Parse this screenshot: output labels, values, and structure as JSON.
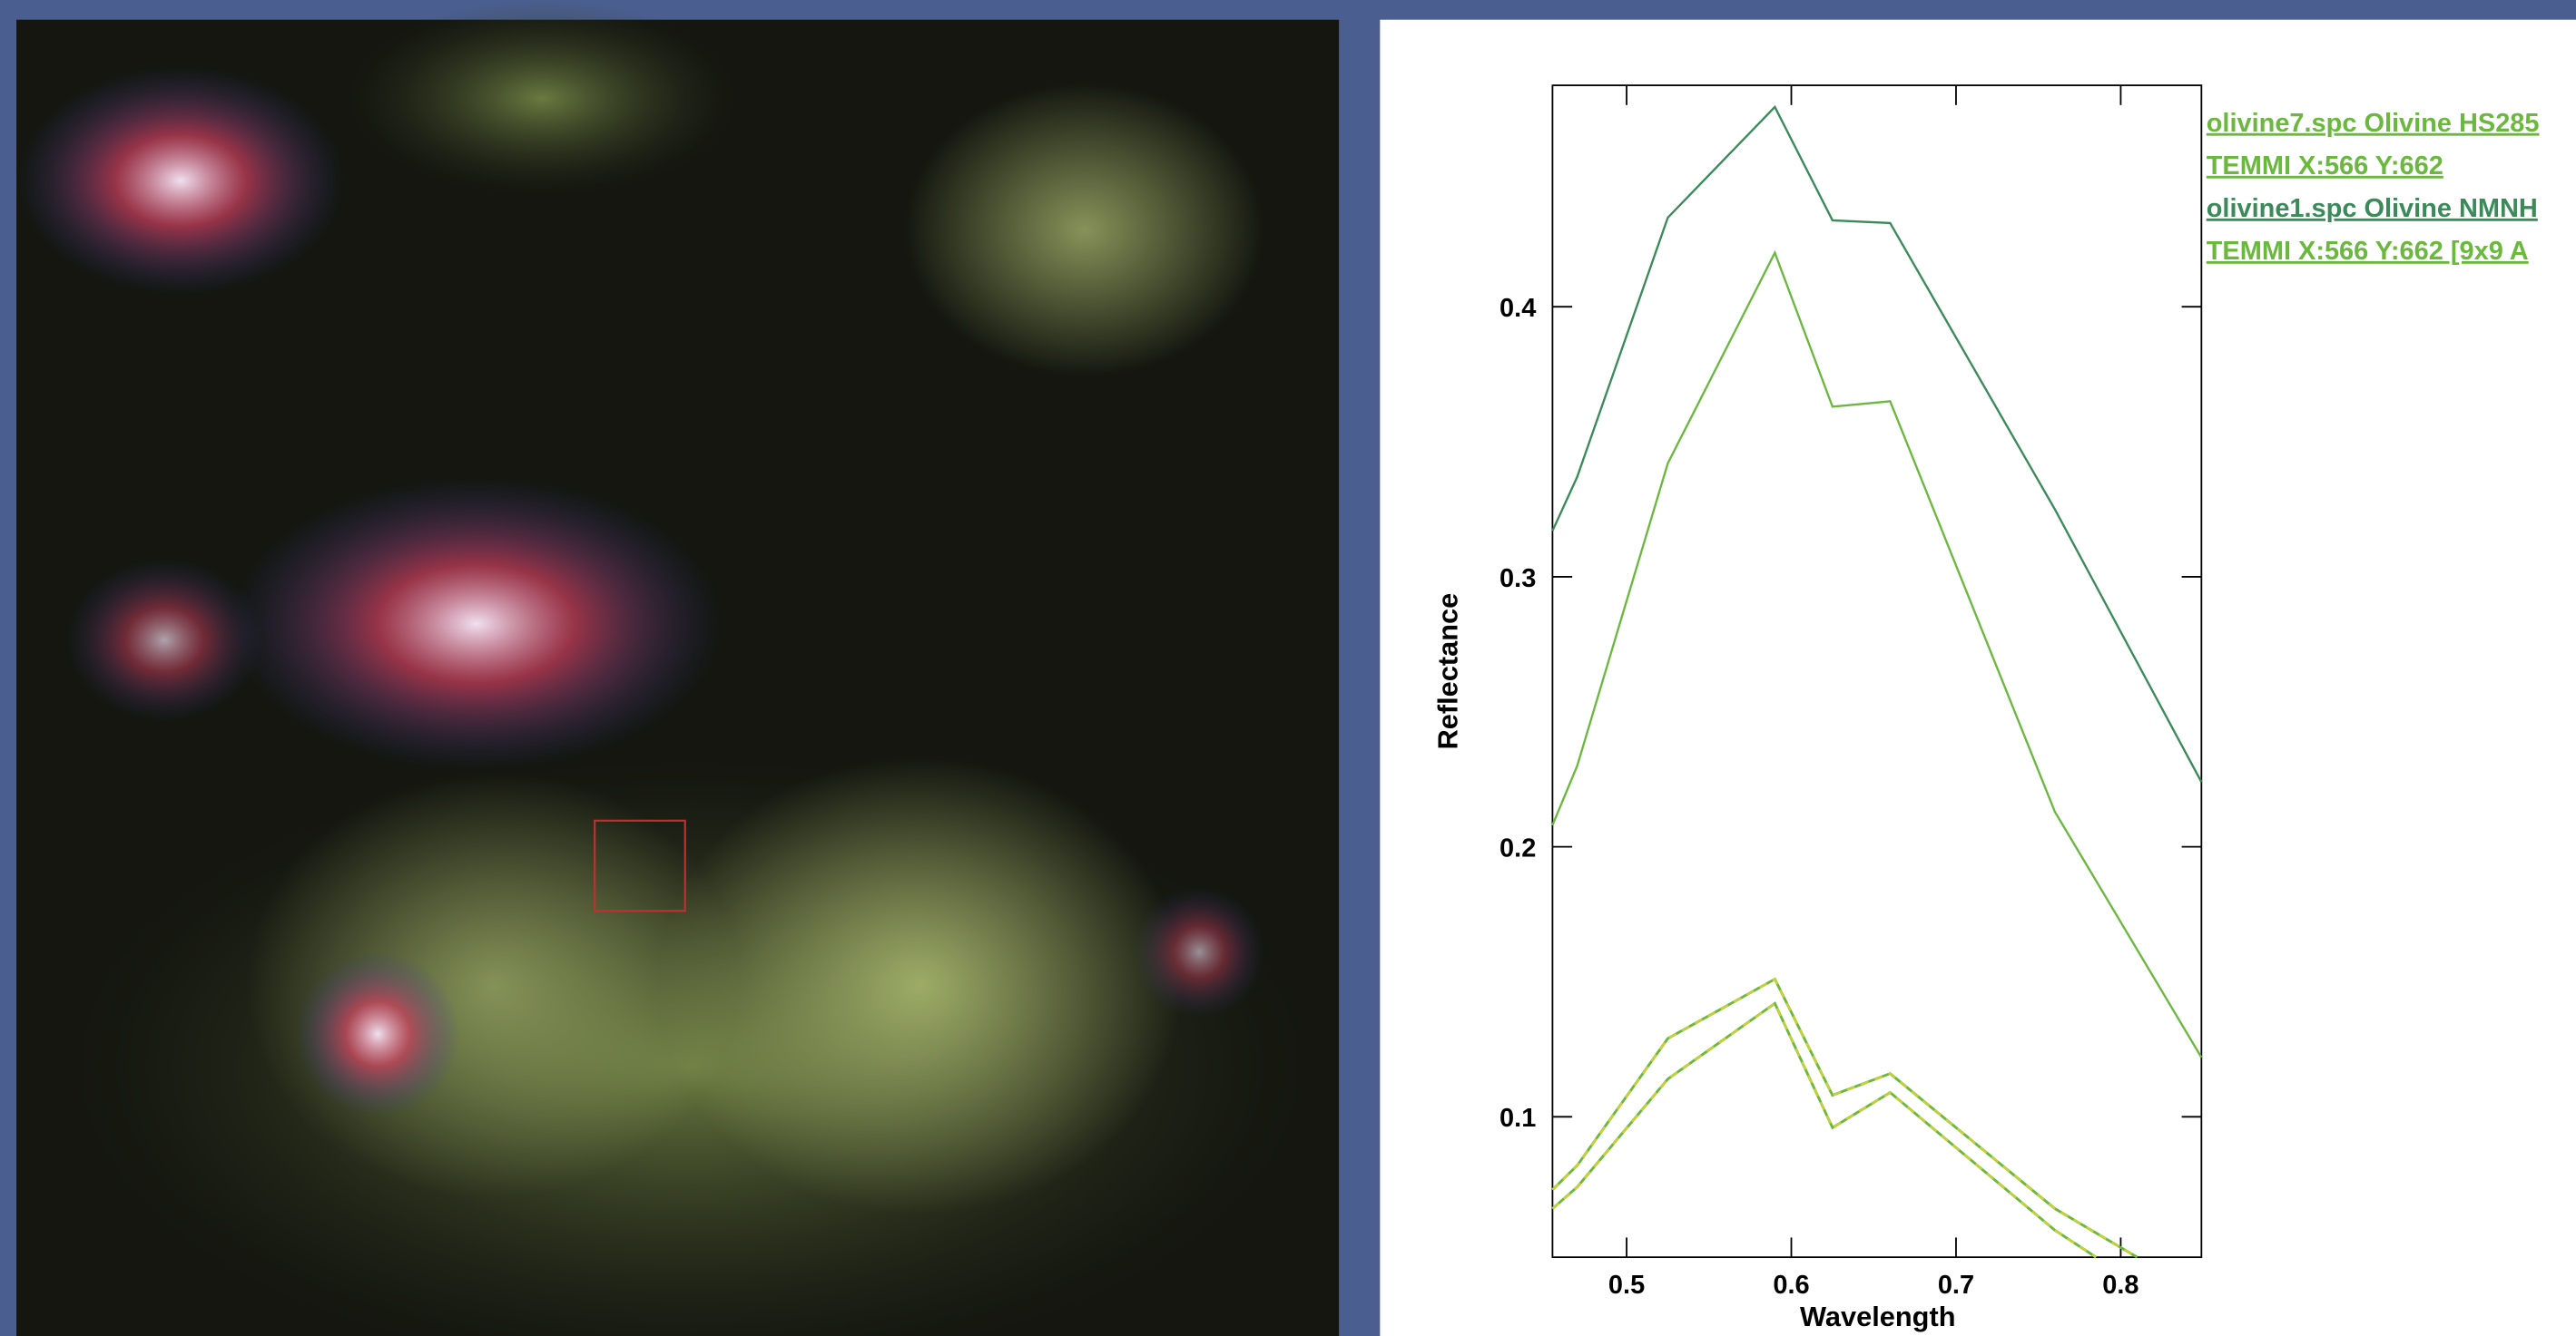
{
  "chart_data": {
    "type": "line",
    "xlabel": "Wavelength",
    "ylabel": "Reflectance",
    "xlim": [
      0.455,
      0.849
    ],
    "ylim": [
      0.048,
      0.482
    ],
    "xticks": [
      0.5,
      0.6,
      0.7,
      0.8
    ],
    "yticks": [
      0.1,
      0.2,
      0.3,
      0.4
    ],
    "series": [
      {
        "name": "olivine7.spc Olivine HS285",
        "color": "#6bb83f",
        "dashed": false,
        "x": [
          0.455,
          0.47,
          0.525,
          0.59,
          0.625,
          0.66,
          0.76,
          0.849
        ],
        "values": [
          0.208,
          0.23,
          0.342,
          0.42,
          0.363,
          0.365,
          0.213,
          0.122
        ]
      },
      {
        "name": "TEMMI X:566 Y:662",
        "color": "#c8d230",
        "dashed": true,
        "x": [
          0.455,
          0.47,
          0.525,
          0.59,
          0.625,
          0.66,
          0.76,
          0.81
        ],
        "values": [
          0.073,
          0.082,
          0.129,
          0.151,
          0.108,
          0.116,
          0.066,
          0.048
        ]
      },
      {
        "name": "olivine1.spc Olivine NMNH",
        "color": "#3a8a5a",
        "dashed": false,
        "x": [
          0.455,
          0.47,
          0.525,
          0.59,
          0.625,
          0.66,
          0.76,
          0.849
        ],
        "values": [
          0.317,
          0.337,
          0.433,
          0.474,
          0.432,
          0.431,
          0.325,
          0.224
        ]
      },
      {
        "name": "TEMMI X:566 Y:662 [9x9 A",
        "color": "#c8d230",
        "dashed": true,
        "x": [
          0.455,
          0.47,
          0.525,
          0.59,
          0.625,
          0.66,
          0.76,
          0.785
        ],
        "values": [
          0.066,
          0.074,
          0.114,
          0.142,
          0.096,
          0.109,
          0.058,
          0.048
        ]
      }
    ]
  }
}
